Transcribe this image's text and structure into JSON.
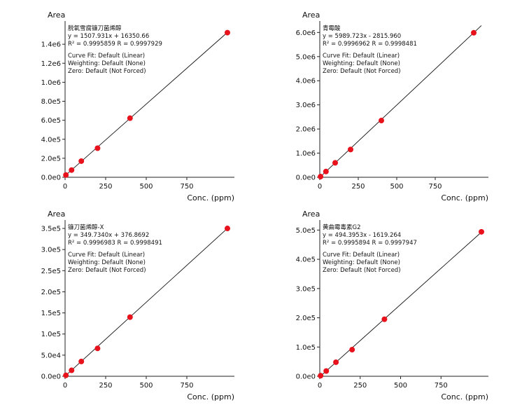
{
  "chart_data": [
    {
      "type": "scatter",
      "title": "",
      "ylabel": "Area",
      "xlabel": "Conc. (ppm)",
      "compound": "脱氧雪腐镰刀菌烯醇",
      "equation": "y = 1507.931x + 16350.66",
      "r_squared": "R² = 0.9995859",
      "r_value": "R = 0.9997929",
      "curve_fit": "Curve Fit: Default (Linear)",
      "weighting": "Weighting: Default (None)",
      "zero": "Zero: Default (Not Forced)",
      "xlim": [
        0,
        1000
      ],
      "ylim": [
        0,
        1600000
      ],
      "x_ticks": [
        0,
        250,
        500,
        750
      ],
      "x_tick_labels": [
        "0",
        "250",
        "500",
        "750"
      ],
      "y_ticks": [
        0,
        200000,
        400000,
        600000,
        800000,
        1000000,
        1200000,
        1400000
      ],
      "y_tick_labels": [
        "0.0e0",
        "2.0e5",
        "4.0e5",
        "6.0e5",
        "8.0e5",
        "1.0e6",
        "1.2e6",
        "1.4e6"
      ],
      "slope": 1507.931,
      "intercept": 16350.66,
      "x": [
        5,
        40,
        100,
        200,
        400,
        1000
      ],
      "y": [
        24000,
        76000,
        170000,
        306000,
        622000,
        1522000
      ],
      "point_color": "#e8121c",
      "line_color": "#111111"
    },
    {
      "type": "scatter",
      "title": "",
      "ylabel": "Area",
      "xlabel": "Conc. (ppm)",
      "compound": "青霉酸",
      "equation": "y = 5989.723x - 2815.960",
      "r_squared": "R² = 0.9996962",
      "r_value": "R = 0.9998481",
      "curve_fit": "Curve Fit: Default (Linear)",
      "weighting": "Weighting: Default (None)",
      "zero": "Zero: Default (Not Forced)",
      "xlim": [
        0,
        1050
      ],
      "ylim": [
        0,
        6300000
      ],
      "x_ticks": [
        0,
        250,
        500,
        750
      ],
      "x_tick_labels": [
        "0",
        "250",
        "500",
        "750"
      ],
      "y_ticks": [
        0,
        1000000,
        2000000,
        3000000,
        4000000,
        5000000,
        6000000
      ],
      "y_tick_labels": [
        "0.0e0",
        "1.0e6",
        "2.0e6",
        "3.0e6",
        "4.0e6",
        "5.0e6",
        "6.0e6"
      ],
      "slope": 5989.723,
      "intercept": -2815.96,
      "x": [
        5,
        40,
        100,
        200,
        400,
        1000
      ],
      "y": [
        28000,
        238000,
        598000,
        1150000,
        2350000,
        5987000
      ],
      "point_color": "#e8121c",
      "line_color": "#111111"
    },
    {
      "type": "scatter",
      "title": "",
      "ylabel": "Area",
      "xlabel": "Conc. (ppm)",
      "compound": "镰刀菌烯醇-X",
      "equation": "y = 349.7340x + 376.8692",
      "r_squared": "R² = 0.9996983",
      "r_value": "R = 0.9998491",
      "curve_fit": "Curve Fit: Default (Linear)",
      "weighting": "Weighting: Default (None)",
      "zero": "Zero: Default (Not Forced)",
      "xlim": [
        0,
        1000
      ],
      "ylim": [
        0,
        360000
      ],
      "x_ticks": [
        0,
        250,
        500,
        750
      ],
      "x_tick_labels": [
        "0",
        "250",
        "500",
        "750"
      ],
      "y_ticks": [
        0,
        50000,
        100000,
        150000,
        200000,
        250000,
        300000,
        350000
      ],
      "y_tick_labels": [
        "0.0e0",
        "5.0e4",
        "1.0e5",
        "1.5e5",
        "2.0e5",
        "2.5e5",
        "3.0e5",
        "3.5e5"
      ],
      "slope": 349.734,
      "intercept": 376.8692,
      "x": [
        5,
        40,
        100,
        200,
        400,
        1000
      ],
      "y": [
        2200,
        14000,
        35000,
        66000,
        140000,
        350000
      ],
      "point_color": "#e8121c",
      "line_color": "#111111"
    },
    {
      "type": "scatter",
      "title": "",
      "ylabel": "Area",
      "xlabel": "Conc. (ppm)",
      "compound": "黄曲霉毒素G2",
      "equation": "y = 494.3953x - 1619.264",
      "r_squared": "R² = 0.9995894",
      "r_value": "R = 0.9997947",
      "curve_fit": "Curve Fit: Default (Linear)",
      "weighting": "Weighting: Default (None)",
      "zero": "Zero: Default (Not Forced)",
      "xlim": [
        0,
        1000
      ],
      "ylim": [
        0,
        520000
      ],
      "x_ticks": [
        0,
        250,
        500,
        750
      ],
      "x_tick_labels": [
        "0",
        "250",
        "500",
        "750"
      ],
      "y_ticks": [
        0,
        100000,
        200000,
        300000,
        400000,
        500000
      ],
      "y_tick_labels": [
        "0.0e0",
        "1.0e5",
        "2.0e5",
        "3.0e5",
        "4.0e5",
        "5.0e5"
      ],
      "slope": 494.3953,
      "intercept": -1619.264,
      "x": [
        5,
        40,
        100,
        200,
        400,
        1000
      ],
      "y": [
        2000,
        18000,
        48000,
        91000,
        195000,
        494000
      ],
      "point_color": "#e8121c",
      "line_color": "#111111"
    }
  ]
}
